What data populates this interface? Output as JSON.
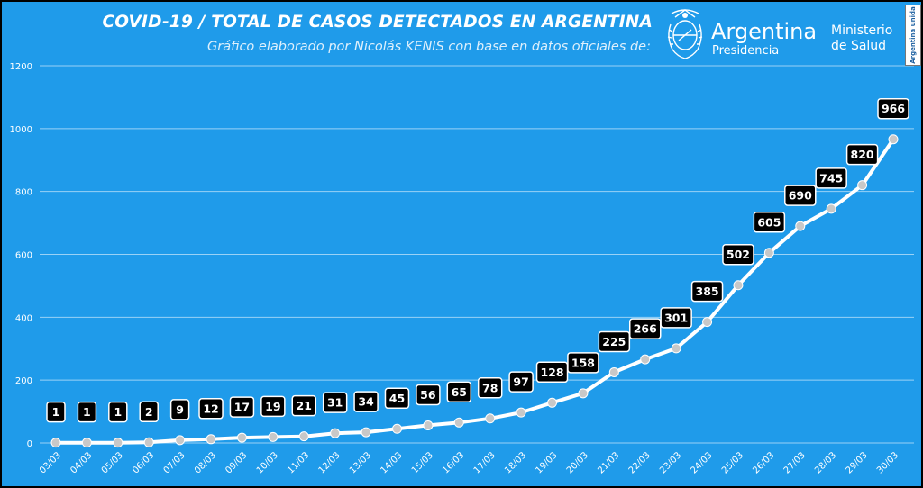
{
  "header": {
    "title": "COVID-19  /  TOTAL DE CASOS DETECTADOS EN ARGENTINA",
    "subtitle": "Gráfico elaborado por Nicolás KENIS con base en datos oficiales de:"
  },
  "logos": {
    "argentina_name": "Argentina",
    "argentina_sub": "Presidencia",
    "ministerio_line1": "Ministerio",
    "ministerio_line2": "de Salud",
    "unida_text": "Argentina unida",
    "shield_icon": "argentina-coat-of-arms-icon"
  },
  "colors": {
    "background": "#1f9bea",
    "line": "#ffffff",
    "marker": "#c8c8c8",
    "label_box": "#000000"
  },
  "chart_data": {
    "type": "line",
    "title": "COVID-19  /  TOTAL DE CASOS DETECTADOS EN ARGENTINA",
    "xlabel": "",
    "ylabel": "",
    "ylim": [
      0,
      1200
    ],
    "yticks": [
      0,
      200,
      400,
      600,
      800,
      1000,
      1200
    ],
    "grid": true,
    "categories": [
      "03/03",
      "04/03",
      "05/03",
      "06/03",
      "07/03",
      "08/03",
      "09/03",
      "10/03",
      "11/03",
      "12/03",
      "13/03",
      "14/03",
      "15/03",
      "16/03",
      "17/03",
      "18/03",
      "19/03",
      "20/03",
      "21/03",
      "22/03",
      "23/03",
      "24/03",
      "25/03",
      "26/03",
      "27/03",
      "28/03",
      "29/03",
      "30/03"
    ],
    "values": [
      1,
      1,
      1,
      2,
      9,
      12,
      17,
      19,
      21,
      31,
      34,
      45,
      56,
      65,
      78,
      97,
      128,
      158,
      225,
      266,
      301,
      385,
      502,
      605,
      690,
      745,
      820,
      966
    ]
  }
}
